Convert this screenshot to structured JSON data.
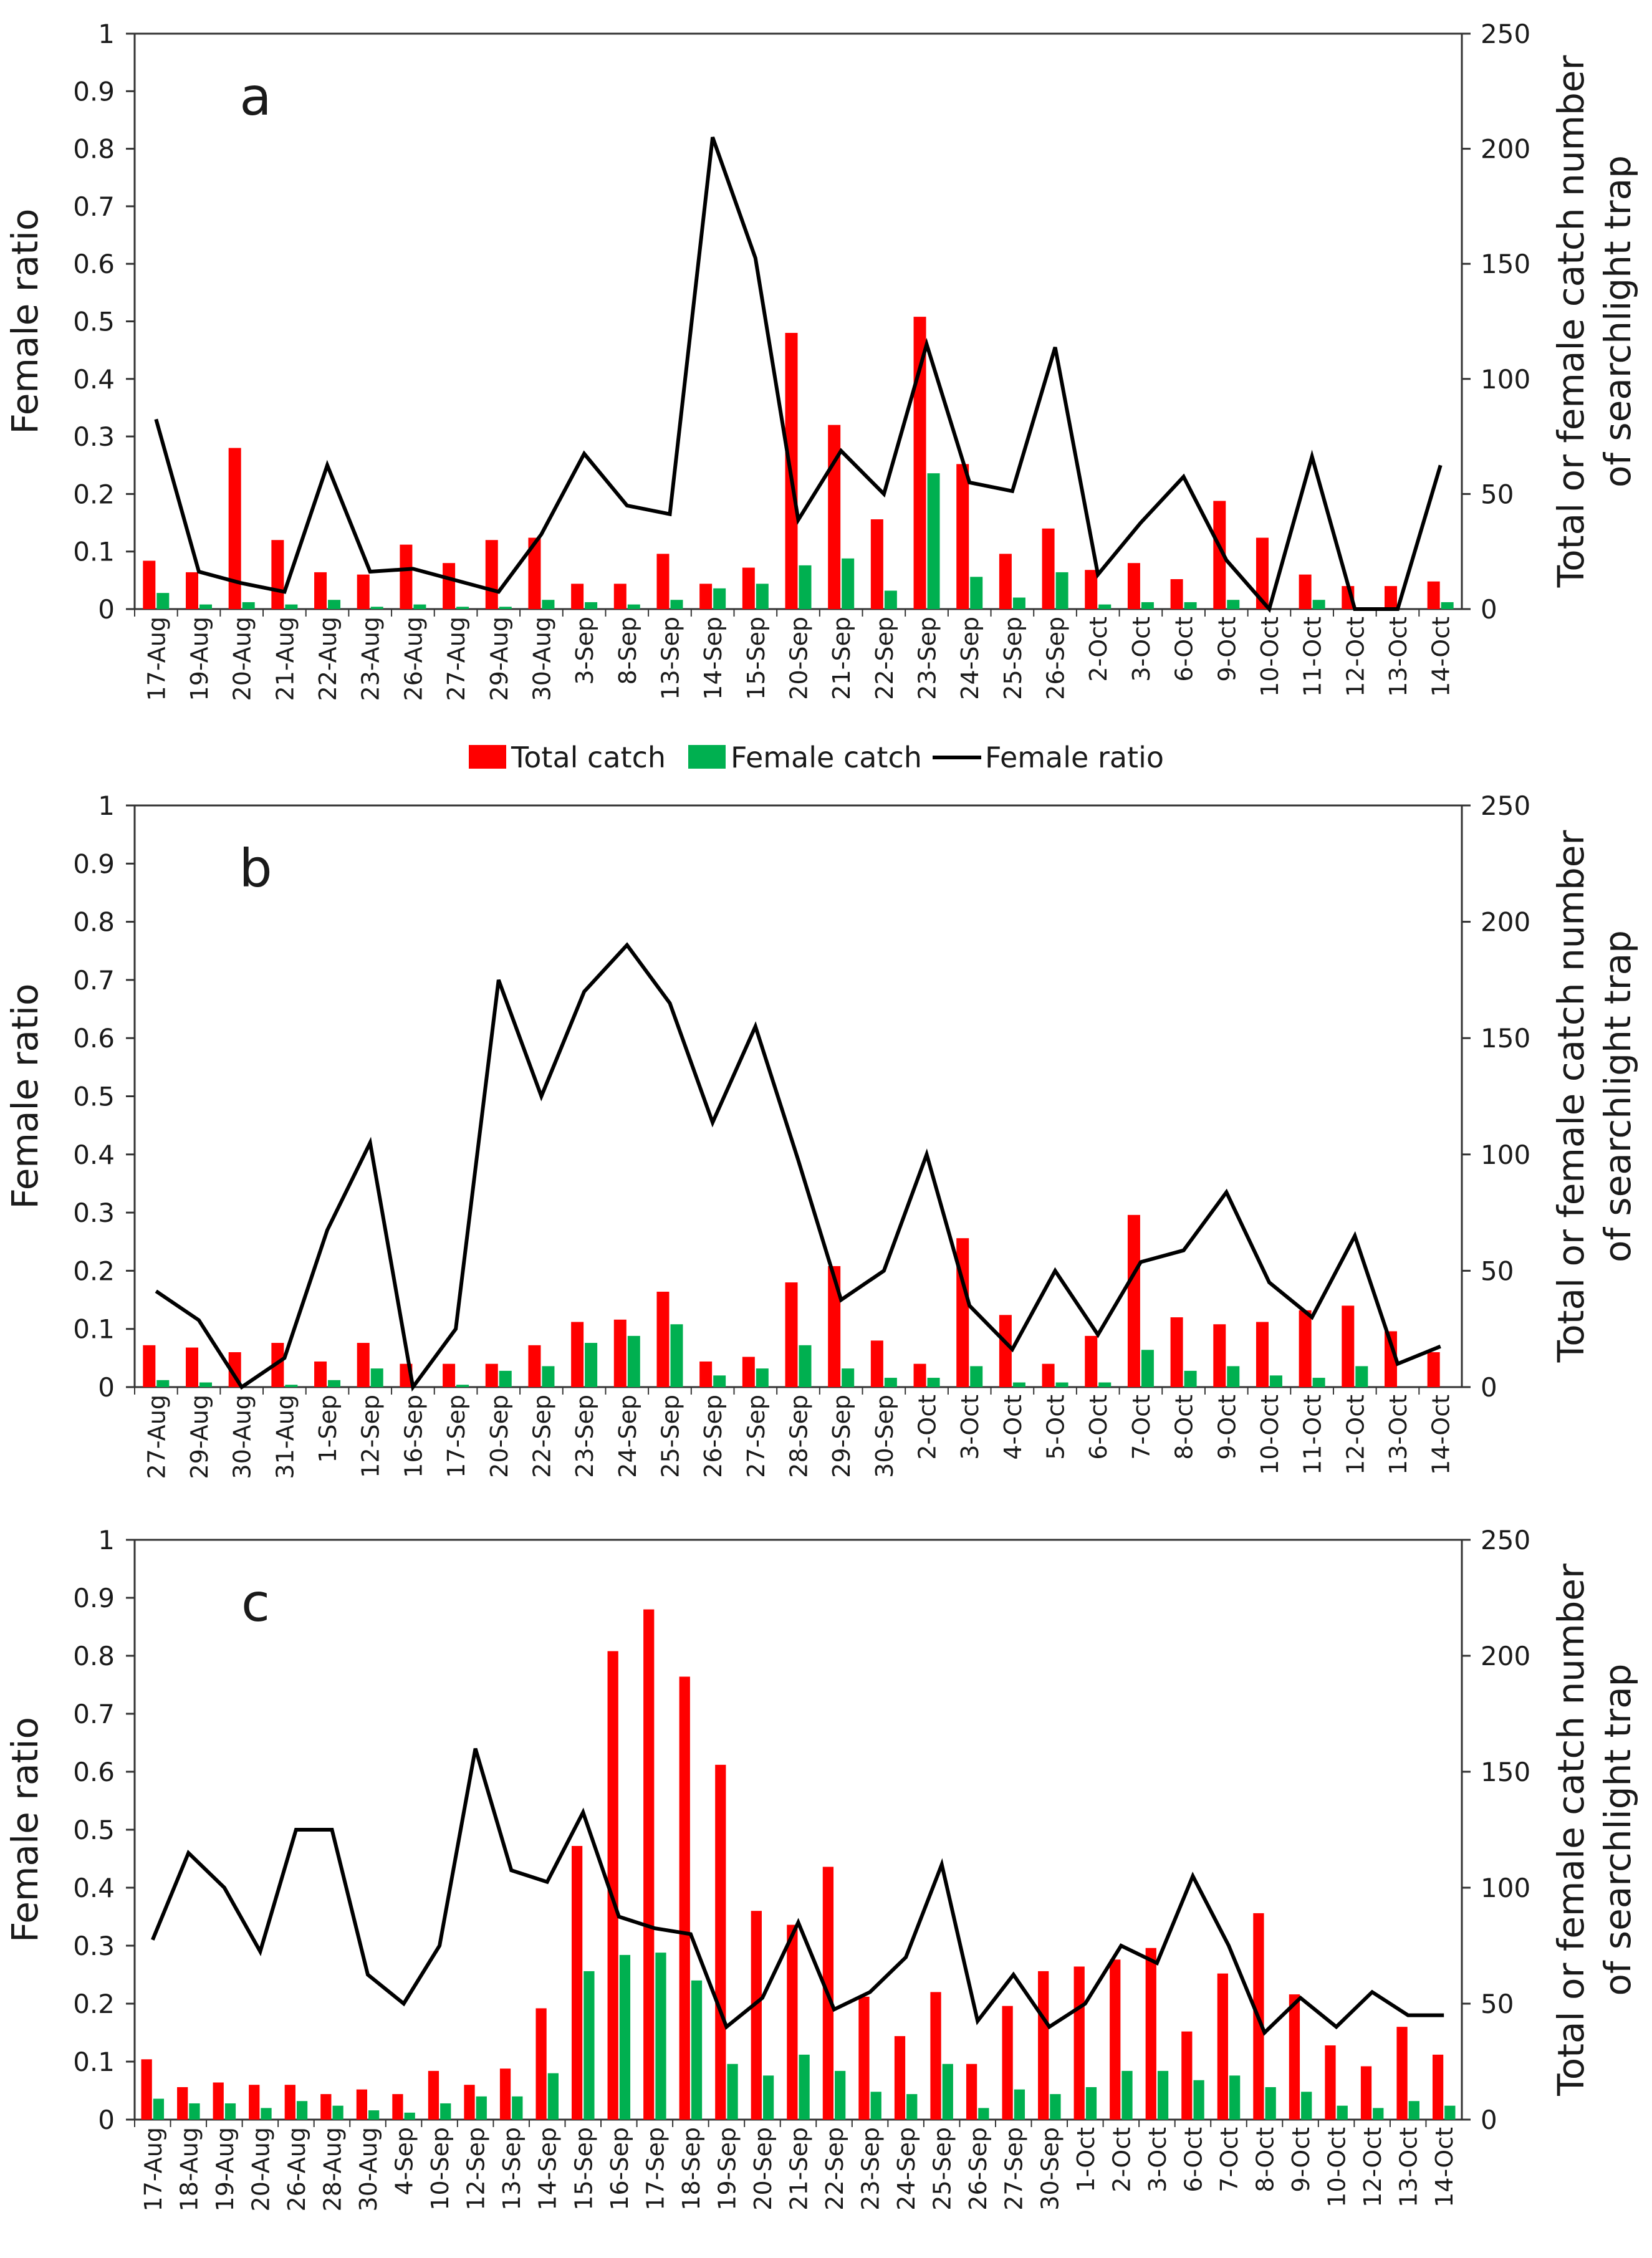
{
  "legend": {
    "total_label": "Total catch",
    "female_label": "Female catch",
    "ratio_label": "Female ratio"
  },
  "colors": {
    "total": "#ff0000",
    "female": "#00b050",
    "ratio": "#000000"
  },
  "chart_data": [
    {
      "type": "bar",
      "panel_label": "a",
      "ylabel_left": "Female ratio",
      "ylabel_right": [
        "Total or female catch number",
        "of searchlight trap"
      ],
      "yleft_ticks": [
        "0",
        "0.1",
        "0.2",
        "0.3",
        "0.4",
        "0.5",
        "0.6",
        "0.7",
        "0.8",
        "0.9",
        "1"
      ],
      "yright_ticks": [
        "0",
        "50",
        "100",
        "150",
        "200",
        "250"
      ],
      "ylim_left": [
        0,
        1
      ],
      "ylim_right": [
        0,
        250
      ],
      "categories": [
        "17-Aug",
        "19-Aug",
        "20-Aug",
        "21-Aug",
        "22-Aug",
        "23-Aug",
        "26-Aug",
        "27-Aug",
        "29-Aug",
        "30-Aug",
        "3-Sep",
        "8-Sep",
        "13-Sep",
        "14-Sep",
        "15-Sep",
        "20-Sep",
        "21-Sep",
        "22-Sep",
        "23-Sep",
        "24-Sep",
        "25-Sep",
        "26-Sep",
        "2-Oct",
        "3-Oct",
        "6-Oct",
        "9-Oct",
        "10-Oct",
        "11-Oct",
        "12-Oct",
        "13-Oct",
        "14-Oct"
      ],
      "series": [
        {
          "name": "Total catch",
          "kind": "bar",
          "axis": "right",
          "values": [
            21,
            16,
            70,
            30,
            16,
            15,
            28,
            20,
            30,
            31,
            11,
            11,
            24,
            11,
            18,
            120,
            80,
            39,
            127,
            63,
            24,
            35,
            17,
            20,
            13,
            47,
            31,
            15,
            10,
            10,
            12
          ]
        },
        {
          "name": "Female catch",
          "kind": "bar",
          "axis": "right",
          "values": [
            7,
            2,
            3,
            2,
            4,
            1,
            2,
            1,
            1,
            4,
            3,
            2,
            4,
            9,
            11,
            19,
            22,
            8,
            59,
            14,
            5,
            16,
            2,
            3,
            3,
            4,
            0,
            4,
            0,
            0,
            3
          ]
        },
        {
          "name": "Female ratio",
          "kind": "line",
          "axis": "left",
          "values": [
            0.33,
            0.065,
            0.045,
            0.03,
            0.25,
            0.065,
            0.07,
            0.05,
            0.03,
            0.13,
            0.27,
            0.18,
            0.165,
            0.82,
            0.61,
            0.155,
            0.275,
            0.2,
            0.46,
            0.22,
            0.205,
            0.455,
            0.06,
            0.15,
            0.23,
            0.085,
            0.0,
            0.265,
            0.0,
            0.0,
            0.25
          ]
        }
      ]
    },
    {
      "type": "bar",
      "panel_label": "b",
      "ylabel_left": "Female ratio",
      "ylabel_right": [
        "Total or female catch number",
        "of searchlight trap"
      ],
      "yleft_ticks": [
        "0",
        "0.1",
        "0.2",
        "0.3",
        "0.4",
        "0.5",
        "0.6",
        "0.7",
        "0.8",
        "0.9",
        "1"
      ],
      "yright_ticks": [
        "0",
        "50",
        "100",
        "150",
        "200",
        "250"
      ],
      "ylim_left": [
        0,
        1
      ],
      "ylim_right": [
        0,
        250
      ],
      "categories": [
        "27-Aug",
        "29-Aug",
        "30-Aug",
        "31-Aug",
        "1-Sep",
        "12-Sep",
        "16-Sep",
        "17-Sep",
        "20-Sep",
        "22-Sep",
        "23-Sep",
        "24-Sep",
        "25-Sep",
        "26-Sep",
        "27-Sep",
        "28-Sep",
        "29-Sep",
        "30-Sep",
        "2-Oct",
        "3-Oct",
        "4-Oct",
        "5-Oct",
        "6-Oct",
        "7-Oct",
        "8-Oct",
        "9-Oct",
        "10-Oct",
        "11-Oct",
        "12-Oct",
        "13-Oct",
        "14-Oct"
      ],
      "series": [
        {
          "name": "Total catch",
          "kind": "bar",
          "axis": "right",
          "values": [
            18,
            17,
            15,
            19,
            11,
            19,
            10,
            10,
            10,
            18,
            28,
            29,
            41,
            11,
            13,
            45,
            52,
            20,
            10,
            64,
            31,
            10,
            22,
            74,
            30,
            27,
            28,
            33,
            35,
            24,
            15
          ]
        },
        {
          "name": "Female catch",
          "kind": "bar",
          "axis": "right",
          "values": [
            3,
            2,
            0,
            1,
            3,
            8,
            0,
            1,
            7,
            9,
            19,
            22,
            27,
            5,
            8,
            18,
            8,
            4,
            4,
            9,
            2,
            2,
            2,
            16,
            7,
            9,
            5,
            4,
            9,
            0,
            0
          ]
        },
        {
          "name": "Female ratio",
          "kind": "line",
          "axis": "left",
          "values": [
            0.165,
            0.115,
            0.0,
            0.05,
            0.27,
            0.42,
            0.0,
            0.1,
            0.7,
            0.5,
            0.68,
            0.76,
            0.66,
            0.455,
            0.62,
            0.39,
            0.15,
            0.2,
            0.4,
            0.14,
            0.065,
            0.2,
            0.09,
            0.215,
            0.235,
            0.335,
            0.18,
            0.12,
            0.26,
            0.04,
            0.07
          ]
        }
      ]
    },
    {
      "type": "bar",
      "panel_label": "c",
      "ylabel_left": "Female ratio",
      "ylabel_right": [
        "Total or female catch number",
        "of searchlight trap"
      ],
      "yleft_ticks": [
        "0",
        "0.1",
        "0.2",
        "0.3",
        "0.4",
        "0.5",
        "0.6",
        "0.7",
        "0.8",
        "0.9",
        "1"
      ],
      "yright_ticks": [
        "0",
        "50",
        "100",
        "150",
        "200",
        "250"
      ],
      "ylim_left": [
        0,
        1
      ],
      "ylim_right": [
        0,
        250
      ],
      "categories": [
        "17-Aug",
        "18-Aug",
        "19-Aug",
        "20-Aug",
        "26-Aug",
        "28-Aug",
        "30-Aug",
        "4-Sep",
        "10-Sep",
        "12-Sep",
        "13-Sep",
        "14-Sep",
        "15-Sep",
        "16-Sep",
        "17-Sep",
        "18-Sep",
        "19-Sep",
        "20-Sep",
        "21-Sep",
        "22-Sep",
        "23-Sep",
        "24-Sep",
        "25-Sep",
        "26-Sep",
        "27-Sep",
        "30-Sep",
        "1-Oct",
        "2-Oct",
        "3-Oct",
        "6-Oct",
        "7-Oct",
        "8-Oct",
        "9-Oct",
        "10-Oct",
        "12-Oct",
        "13-Oct",
        "14-Oct"
      ],
      "series": [
        {
          "name": "Total catch",
          "kind": "bar",
          "axis": "right",
          "values": [
            26,
            14,
            16,
            15,
            15,
            11,
            13,
            11,
            21,
            15,
            22,
            48,
            118,
            202,
            220,
            191,
            153,
            90,
            84,
            109,
            53,
            36,
            55,
            24,
            49,
            64,
            66,
            69,
            74,
            38,
            63,
            89,
            54,
            32,
            23,
            40,
            28
          ]
        },
        {
          "name": "Female catch",
          "kind": "bar",
          "axis": "right",
          "values": [
            9,
            7,
            7,
            5,
            8,
            6,
            4,
            3,
            7,
            10,
            10,
            20,
            64,
            71,
            72,
            60,
            24,
            19,
            28,
            21,
            12,
            11,
            24,
            5,
            13,
            11,
            14,
            21,
            21,
            17,
            19,
            14,
            12,
            6,
            5,
            8,
            6
          ]
        },
        {
          "name": "Female ratio",
          "kind": "line",
          "axis": "left",
          "values": [
            0.31,
            0.46,
            0.4,
            0.29,
            0.5,
            0.5,
            0.25,
            0.2,
            0.3,
            0.64,
            0.43,
            0.41,
            0.53,
            0.35,
            0.33,
            0.32,
            0.16,
            0.21,
            0.34,
            0.19,
            0.22,
            0.28,
            0.44,
            0.17,
            0.25,
            0.16,
            0.2,
            0.3,
            0.27,
            0.42,
            0.3,
            0.15,
            0.21,
            0.16,
            0.22,
            0.18,
            0.18
          ]
        }
      ]
    }
  ]
}
